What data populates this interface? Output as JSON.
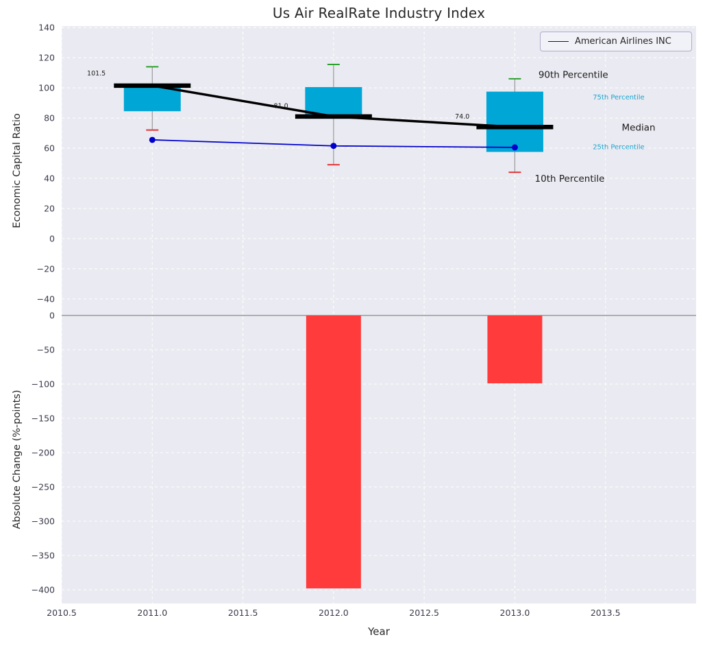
{
  "title": "Us Air RealRate Industry Index",
  "legend": {
    "label": "American Airlines INC"
  },
  "axis_labels": {
    "top_y": "Economic Capital Ratio",
    "bottom_y": "Absolute Change (%-points)",
    "x": "Year"
  },
  "colors": {
    "plot_bg": "#EAEAF2",
    "grid": "#FFFFFF",
    "box_fill": "#00A6D6",
    "median": "#000000",
    "company_line": "#0000CC",
    "p90_cap": "#2CA02C",
    "p10_cap": "#E03131",
    "whisker": "#9A9A9A",
    "bar_fill": "#FF3B3B",
    "zero_line": "#8A8A8A",
    "tick_text": "#3A3A4A",
    "label_text": "#262626",
    "cyan_text": "#18A5CF",
    "annotation_text": "#1A1A1A"
  },
  "chart_data": [
    {
      "type": "boxplot+line",
      "title": "Us Air RealRate Industry Index",
      "ylabel": "Economic Capital Ratio",
      "grid": true,
      "legend_position": "upper right",
      "xlim": [
        2010.5,
        2014.0
      ],
      "ylim": [
        -51,
        141
      ],
      "xticks": {
        "values": [
          2010.5,
          2011.0,
          2011.5,
          2012.0,
          2012.5,
          2013.0,
          2013.5
        ],
        "labels": [
          "2010.5",
          "2011.0",
          "2011.5",
          "2012.0",
          "2012.5",
          "2013.0",
          "2013.5"
        ]
      },
      "yticks": {
        "values": [
          140,
          120,
          100,
          80,
          60,
          40,
          20,
          0,
          -20,
          -40
        ],
        "labels": [
          "140",
          "120",
          "100",
          "80",
          "60",
          "40",
          "20",
          "0",
          "−20",
          "−40"
        ]
      },
      "boxes": [
        {
          "x": 2011,
          "p10": 72,
          "p25": 84.5,
          "median": 101.5,
          "p75": 101,
          "p90": 114
        },
        {
          "x": 2012,
          "p10": 49,
          "p25": 79.5,
          "median": 81.0,
          "p75": 100.5,
          "p90": 115.5
        },
        {
          "x": 2013,
          "p10": 44,
          "p25": 57.5,
          "median": 74.0,
          "p75": 97.5,
          "p90": 106
        }
      ],
      "median_series": {
        "x": [
          2011,
          2012,
          2013
        ],
        "values": [
          101.5,
          81.0,
          74.0
        ]
      },
      "company_series": {
        "name": "American Airlines INC",
        "x": [
          2011,
          2012,
          2013
        ],
        "values": [
          65.5,
          61.5,
          60.5
        ]
      },
      "median_value_labels": [
        {
          "text": "101.5",
          "x": 2010.64,
          "y": 109.5
        },
        {
          "text": "81.0",
          "x": 2011.67,
          "y": 88
        },
        {
          "text": "74.0",
          "x": 2012.67,
          "y": 81
        }
      ],
      "percentile_labels": [
        {
          "text": "90th Percentile",
          "x": 2013.13,
          "y": 109,
          "style": "large"
        },
        {
          "text": "75th Percentile",
          "x": 2013.43,
          "y": 94,
          "style": "small-cyan"
        },
        {
          "text": "Median",
          "x": 2013.59,
          "y": 74,
          "style": "large"
        },
        {
          "text": "25th Percentile",
          "x": 2013.43,
          "y": 61,
          "style": "small-cyan"
        },
        {
          "text": "10th Percentile",
          "x": 2013.11,
          "y": 40,
          "style": "large"
        }
      ]
    },
    {
      "type": "bar",
      "ylabel": "Absolute Change (%-points)",
      "xlabel": "Year",
      "xlim": [
        2010.5,
        2014.0
      ],
      "ylim": [
        -420,
        0
      ],
      "yticks": {
        "values": [
          0,
          -50,
          -100,
          -150,
          -200,
          -250,
          -300,
          -350,
          -400
        ],
        "labels": [
          "0",
          "−50",
          "−100",
          "−150",
          "−200",
          "−250",
          "−300",
          "−350",
          "−400"
        ]
      },
      "x": [
        2012,
        2013
      ],
      "values": [
        -398,
        -99
      ],
      "bar_width_years": 0.3
    }
  ]
}
